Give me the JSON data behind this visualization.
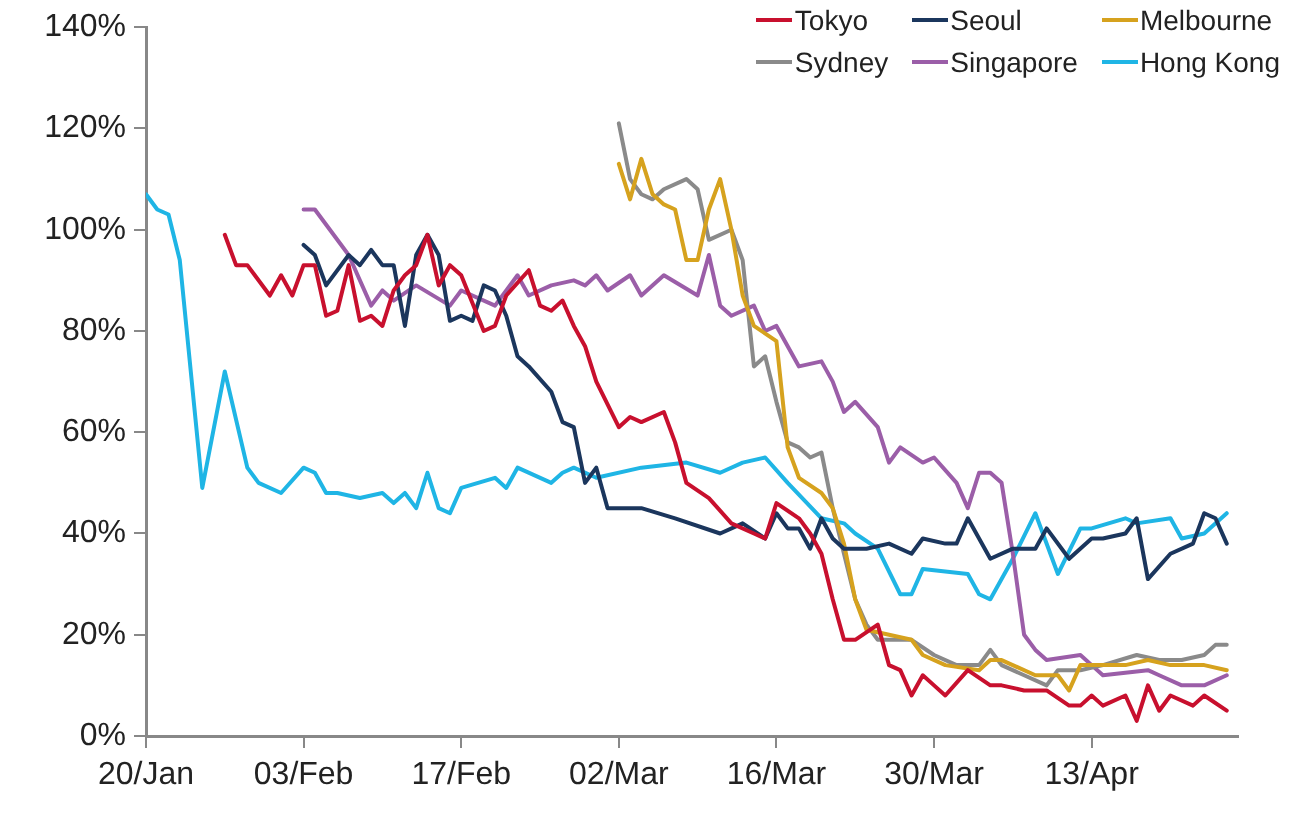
{
  "chart_data": {
    "type": "line",
    "xlim": [
      "--01-20",
      "--04-26"
    ],
    "xticks": [
      {
        "value": "--01-20",
        "label": "20/Jan"
      },
      {
        "value": "--02-03",
        "label": "03/Feb"
      },
      {
        "value": "--02-17",
        "label": "17/Feb"
      },
      {
        "value": "--03-02",
        "label": "02/Mar"
      },
      {
        "value": "--03-16",
        "label": "16/Mar"
      },
      {
        "value": "--03-30",
        "label": "30/Mar"
      },
      {
        "value": "--04-13",
        "label": "13/Apr"
      }
    ],
    "ylim": [
      0,
      140
    ],
    "yticks": [
      {
        "value": 0,
        "label": "0%"
      },
      {
        "value": 20,
        "label": "20%"
      },
      {
        "value": 40,
        "label": "40%"
      },
      {
        "value": 60,
        "label": "60%"
      },
      {
        "value": 80,
        "label": "80%"
      },
      {
        "value": 100,
        "label": "100%"
      },
      {
        "value": 120,
        "label": "120%"
      },
      {
        "value": 140,
        "label": "140%"
      }
    ],
    "grid": false,
    "legend": "top right",
    "marker": "none",
    "line_style": "solid",
    "series": [
      {
        "name": "Tokyo",
        "color": "#c8102e",
        "x": [
          "--01-27",
          "--01-28",
          "--01-29",
          "--01-31",
          "--02-01",
          "--02-02",
          "--02-03",
          "--02-04",
          "--02-05",
          "--02-06",
          "--02-07",
          "--02-08",
          "--02-09",
          "--02-10",
          "--02-11",
          "--02-12",
          "--02-13",
          "--02-14",
          "--02-15",
          "--02-16",
          "--02-17",
          "--02-19",
          "--02-20",
          "--02-21",
          "--02-23",
          "--02-24",
          "--02-25",
          "--02-26",
          "--02-27",
          "--02-28",
          "--02-29",
          "--03-02",
          "--03-03",
          "--03-04",
          "--03-06",
          "--03-07",
          "--03-08",
          "--03-10",
          "--03-12",
          "--03-14",
          "--03-15",
          "--03-16",
          "--03-18",
          "--03-19",
          "--03-20",
          "--03-21",
          "--03-22",
          "--03-23",
          "--03-25",
          "--03-26",
          "--03-27",
          "--03-28",
          "--03-29",
          "--03-30",
          "--03-31",
          "--04-02",
          "--04-04",
          "--04-05",
          "--04-07",
          "--04-09",
          "--04-11",
          "--04-12",
          "--04-13",
          "--04-14",
          "--04-16",
          "--04-17",
          "--04-18",
          "--04-19",
          "--04-20",
          "--04-22",
          "--04-23",
          "--04-25"
        ],
        "values": [
          99,
          93,
          93,
          87,
          91,
          87,
          93,
          93,
          83,
          84,
          93,
          82,
          83,
          81,
          88,
          91,
          93,
          99,
          89,
          93,
          91,
          80,
          81,
          87,
          92,
          85,
          84,
          86,
          81,
          77,
          70,
          61,
          63,
          62,
          64,
          58,
          50,
          47,
          42,
          40,
          39,
          46,
          43,
          40,
          36,
          27,
          19,
          19,
          22,
          14,
          13,
          8,
          12,
          10,
          8,
          13,
          10,
          10,
          9,
          9,
          6,
          6,
          8,
          6,
          8,
          3,
          10,
          5,
          8,
          6,
          8,
          5
        ]
      },
      {
        "name": "Seoul",
        "color": "#1b365d",
        "x": [
          "--02-03",
          "--02-04",
          "--02-05",
          "--02-07",
          "--02-08",
          "--02-09",
          "--02-10",
          "--02-11",
          "--02-12",
          "--02-13",
          "--02-14",
          "--02-15",
          "--02-16",
          "--02-17",
          "--02-18",
          "--02-19",
          "--02-20",
          "--02-21",
          "--02-22",
          "--02-23",
          "--02-25",
          "--02-26",
          "--02-27",
          "--02-28",
          "--02-29",
          "--03-01",
          "--03-04",
          "--03-07",
          "--03-11",
          "--03-13",
          "--03-15",
          "--03-16",
          "--03-17",
          "--03-18",
          "--03-19",
          "--03-20",
          "--03-21",
          "--03-22",
          "--03-24",
          "--03-26",
          "--03-28",
          "--03-29",
          "--03-31",
          "--04-01",
          "--04-02",
          "--04-04",
          "--04-06",
          "--04-08",
          "--04-09",
          "--04-11",
          "--04-13",
          "--04-14",
          "--04-16",
          "--04-17",
          "--04-18",
          "--04-20",
          "--04-22",
          "--04-23",
          "--04-24",
          "--04-25"
        ],
        "values": [
          97,
          95,
          89,
          95,
          93,
          96,
          93,
          93,
          81,
          95,
          99,
          95,
          82,
          83,
          82,
          89,
          88,
          83,
          75,
          73,
          68,
          62,
          61,
          50,
          53,
          45,
          45,
          43,
          40,
          42,
          39,
          44,
          41,
          41,
          37,
          43,
          39,
          37,
          37,
          38,
          36,
          39,
          38,
          38,
          43,
          35,
          37,
          37,
          41,
          35,
          39,
          39,
          40,
          43,
          31,
          36,
          38,
          44,
          43,
          38
        ]
      },
      {
        "name": "Melbourne",
        "color": "#d6a21e",
        "x": [
          "--03-02",
          "--03-03",
          "--03-04",
          "--03-05",
          "--03-06",
          "--03-07",
          "--03-08",
          "--03-09",
          "--03-10",
          "--03-11",
          "--03-12",
          "--03-13",
          "--03-14",
          "--03-16",
          "--03-17",
          "--03-18",
          "--03-20",
          "--03-21",
          "--03-22",
          "--03-23",
          "--03-24",
          "--03-26",
          "--03-28",
          "--03-29",
          "--03-31",
          "--04-03",
          "--04-04",
          "--04-05",
          "--04-08",
          "--04-10",
          "--04-11",
          "--04-12",
          "--04-14",
          "--04-16",
          "--04-18",
          "--04-20",
          "--04-21",
          "--04-23",
          "--04-25"
        ],
        "values": [
          113,
          106,
          114,
          107,
          105,
          104,
          94,
          94,
          104,
          110,
          100,
          87,
          81,
          78,
          57,
          51,
          48,
          45,
          38,
          27,
          21,
          20,
          19,
          16,
          14,
          13,
          15,
          15,
          12,
          12,
          9,
          14,
          14,
          14,
          15,
          14,
          14,
          14,
          13
        ]
      },
      {
        "name": "Sydney",
        "color": "#8a8a8a",
        "x": [
          "--03-02",
          "--03-03",
          "--03-04",
          "--03-05",
          "--03-06",
          "--03-08",
          "--03-09",
          "--03-10",
          "--03-12",
          "--03-13",
          "--03-14",
          "--03-15",
          "--03-16",
          "--03-17",
          "--03-18",
          "--03-19",
          "--03-20",
          "--03-21",
          "--03-22",
          "--03-23",
          "--03-24",
          "--03-25",
          "--03-27",
          "--03-28",
          "--03-30",
          "--04-01",
          "--04-03",
          "--04-04",
          "--04-05",
          "--04-07",
          "--04-09",
          "--04-10",
          "--04-12",
          "--04-14",
          "--04-17",
          "--04-19",
          "--04-21",
          "--04-23",
          "--04-24",
          "--04-25"
        ],
        "values": [
          121,
          110,
          107,
          106,
          108,
          110,
          108,
          98,
          100,
          94,
          73,
          75,
          66,
          58,
          57,
          55,
          56,
          45,
          36,
          27,
          22,
          19,
          19,
          19,
          16,
          14,
          14,
          17,
          14,
          12,
          10,
          13,
          13,
          14,
          16,
          15,
          15,
          16,
          18,
          18
        ]
      },
      {
        "name": "Singapore",
        "color": "#9b5ea8",
        "x": [
          "--02-03",
          "--02-04",
          "--02-07",
          "--02-09",
          "--02-10",
          "--02-11",
          "--02-13",
          "--02-16",
          "--02-17",
          "--02-20",
          "--02-22",
          "--02-23",
          "--02-25",
          "--02-27",
          "--02-28",
          "--02-29",
          "--03-01",
          "--03-03",
          "--03-04",
          "--03-06",
          "--03-09",
          "--03-10",
          "--03-11",
          "--03-12",
          "--03-14",
          "--03-15",
          "--03-16",
          "--03-18",
          "--03-20",
          "--03-21",
          "--03-22",
          "--03-23",
          "--03-25",
          "--03-26",
          "--03-27",
          "--03-29",
          "--03-30",
          "--04-01",
          "--04-02",
          "--04-03",
          "--04-04",
          "--04-05",
          "--04-06",
          "--04-07",
          "--04-08",
          "--04-09",
          "--04-12",
          "--04-13",
          "--04-14",
          "--04-18",
          "--04-19",
          "--04-21",
          "--04-23",
          "--04-25"
        ],
        "values": [
          104,
          104,
          95,
          85,
          88,
          86,
          89,
          85,
          88,
          85,
          91,
          87,
          89,
          90,
          89,
          91,
          88,
          91,
          87,
          91,
          87,
          95,
          85,
          83,
          85,
          80,
          81,
          73,
          74,
          70,
          64,
          66,
          61,
          54,
          57,
          54,
          55,
          50,
          45,
          52,
          52,
          50,
          36,
          20,
          17,
          15,
          16,
          14,
          12,
          13,
          12,
          10,
          10,
          12
        ]
      },
      {
        "name": "Hong Kong",
        "color": "#1fb5e5",
        "x": [
          "--01-20",
          "--01-21",
          "--01-22",
          "--01-23",
          "--01-25",
          "--01-27",
          "--01-29",
          "--01-30",
          "--02-01",
          "--02-03",
          "--02-04",
          "--02-05",
          "--02-06",
          "--02-08",
          "--02-10",
          "--02-11",
          "--02-12",
          "--02-13",
          "--02-14",
          "--02-15",
          "--02-16",
          "--02-17",
          "--02-20",
          "--02-21",
          "--02-22",
          "--02-25",
          "--02-26",
          "--02-27",
          "--02-29",
          "--03-04",
          "--03-08",
          "--03-11",
          "--03-13",
          "--03-15",
          "--03-17",
          "--03-20",
          "--03-22",
          "--03-23",
          "--03-25",
          "--03-27",
          "--03-28",
          "--03-29",
          "--04-02",
          "--04-03",
          "--04-04",
          "--04-06",
          "--04-08",
          "--04-10",
          "--04-12",
          "--04-13",
          "--04-16",
          "--04-17",
          "--04-20",
          "--04-21",
          "--04-23",
          "--04-25"
        ],
        "values": [
          107,
          104,
          103,
          94,
          49,
          72,
          53,
          50,
          48,
          53,
          52,
          48,
          48,
          47,
          48,
          46,
          48,
          45,
          52,
          45,
          44,
          49,
          51,
          49,
          53,
          50,
          52,
          53,
          51,
          53,
          54,
          52,
          54,
          55,
          50,
          43,
          42,
          40,
          37,
          28,
          28,
          33,
          32,
          28,
          27,
          35,
          44,
          32,
          41,
          41,
          43,
          42,
          43,
          39,
          40,
          44
        ]
      }
    ]
  }
}
